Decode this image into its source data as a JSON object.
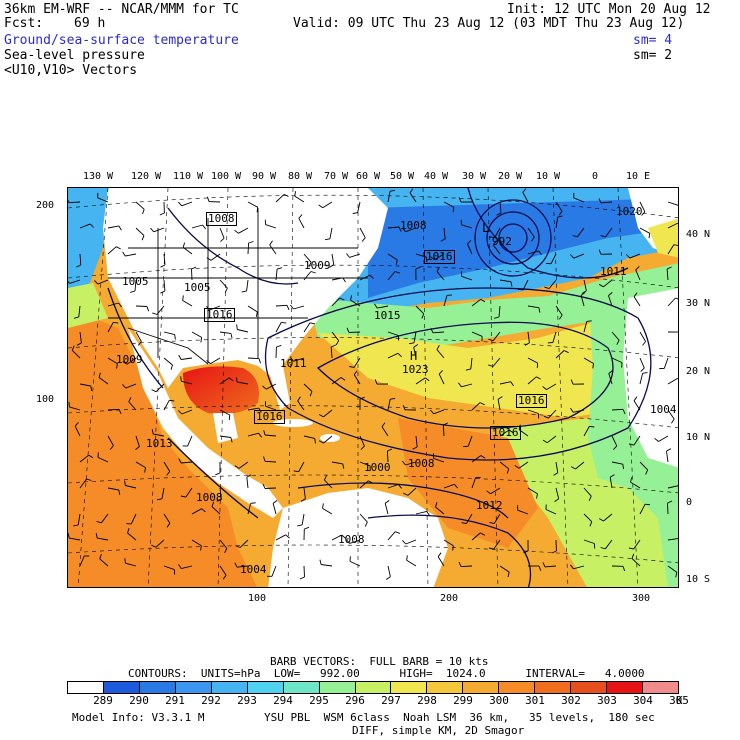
{
  "header": {
    "title_left": "36km EM-WRF -- NCAR/MMM for TC",
    "init": "Init: 12 UTC Mon 20 Aug 12",
    "fcst_label": "Fcst:",
    "fcst_value": "69 h",
    "valid": "Valid: 09 UTC Thu 23 Aug 12 (03 MDT Thu 23 Aug 12)",
    "field1": "Ground/sea-surface temperature",
    "field1_sm": "sm= 4",
    "field2": "Sea-level pressure",
    "field2_sm": "sm= 2",
    "field3": "<U10,V10> Vectors"
  },
  "axes": {
    "top_lon": [
      "130 W",
      "120 W",
      "110 W",
      "100 W",
      "90 W",
      "80 W",
      "70 W",
      "60 W",
      "50 W",
      "40 W",
      "30 W",
      "20 W",
      "10 W",
      "0",
      "10 E"
    ],
    "right_lat": [
      "40 N",
      "30 N",
      "20 N",
      "10 N",
      "0",
      "10 S"
    ],
    "left_grid": [
      "200",
      "100"
    ],
    "bottom_grid": [
      "100",
      "200",
      "300"
    ]
  },
  "map_labels": {
    "isobars_boxed": [
      "1008",
      "1016",
      "1016",
      "1016",
      "1016",
      "1016"
    ],
    "isobars_plain": [
      "1008",
      "1009",
      "1005",
      "1005",
      "1015",
      "1011",
      "1000",
      "1012",
      "1008",
      "1008",
      "1004",
      "1011",
      "1004",
      "1020",
      "1013",
      "1009",
      "1008",
      "992"
    ],
    "high_marker": "H",
    "high_value": "1023",
    "low_marker": "L"
  },
  "footer": {
    "barb_line": "BARB VECTORS:  FULL BARB = 10 kts",
    "contours": "CONTOURS:  UNITS=hPa  LOW=   992.00      HIGH=  1024.0      INTERVAL=   4.0000",
    "unit": "K",
    "model_info": "Model Info: V3.3.1 M         YSU PBL  WSM 6class  Noah LSM  36 km,   35 levels,  180 sec",
    "model_info2": "DIFF, simple KM, 2D Smagor"
  },
  "colorbar": {
    "labels": [
      "289",
      "290",
      "291",
      "292",
      "293",
      "294",
      "295",
      "296",
      "297",
      "298",
      "299",
      "300",
      "301",
      "302",
      "303",
      "304",
      "305"
    ],
    "colors": [
      "#ffffff",
      "#1e5adc",
      "#2a7ae6",
      "#3c96f0",
      "#46b4f0",
      "#50d2f0",
      "#6ee6c8",
      "#96f096",
      "#c8f064",
      "#f0e650",
      "#f5c83c",
      "#f5aa32",
      "#f58c28",
      "#f06e1e",
      "#e6501e",
      "#e61414",
      "#f08c8c"
    ]
  }
}
